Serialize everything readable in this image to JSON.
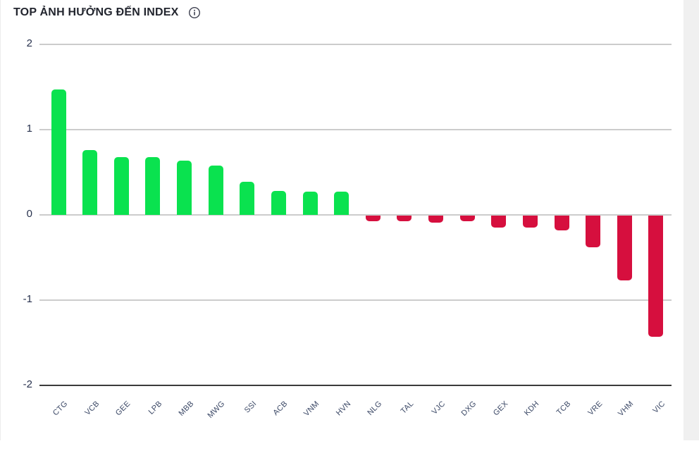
{
  "page": {
    "title": "TOP ẢNH HƯỞNG ĐẾN INDEX"
  },
  "chart_data": {
    "type": "bar",
    "title": "TOP ẢNH HƯỞNG ĐẾN INDEX",
    "xlabel": "",
    "ylabel": "",
    "categories": [
      "CTG",
      "VCB",
      "GEE",
      "LPB",
      "MBB",
      "MWG",
      "SSI",
      "ACB",
      "VNM",
      "HVN",
      "NLG",
      "TAL",
      "VJC",
      "DXG",
      "GEX",
      "KDH",
      "TCB",
      "VRE",
      "VHM",
      "VIC"
    ],
    "values": [
      1.47,
      0.76,
      0.68,
      0.68,
      0.64,
      0.58,
      0.39,
      0.28,
      0.27,
      0.27,
      -0.07,
      -0.07,
      -0.08,
      -0.07,
      -0.14,
      -0.14,
      -0.17,
      -0.37,
      -0.76,
      -1.42
    ],
    "yticks": [
      2,
      1,
      0,
      -1,
      -2
    ],
    "ylim": [
      -2,
      2
    ],
    "grid": true,
    "legend": "none",
    "positive_color": "#0AE24F",
    "negative_color": "#D60F3E"
  }
}
